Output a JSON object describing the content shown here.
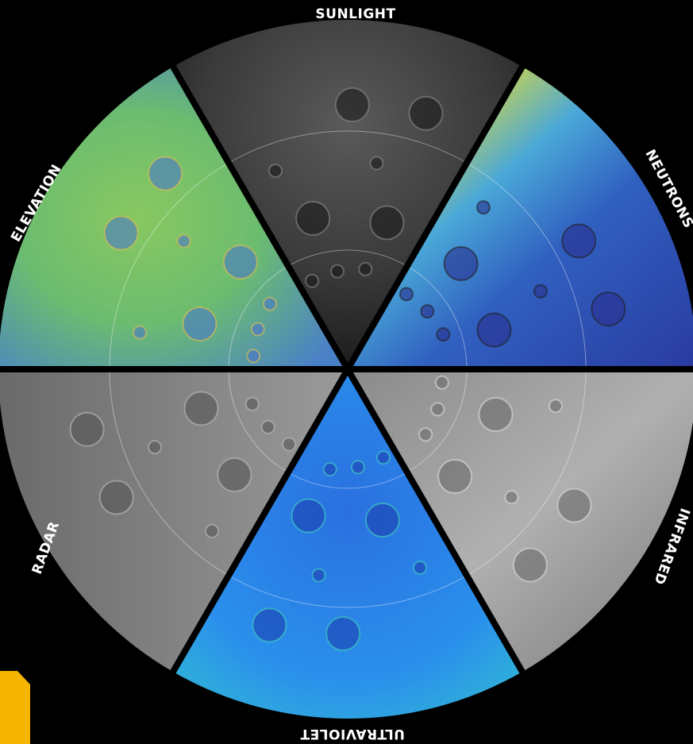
{
  "segments": [
    {
      "label": "SUNLIGHT"
    },
    {
      "label": "NEUTRONS"
    },
    {
      "label": "INFRARED"
    },
    {
      "label": "ULTRAVIOLET"
    },
    {
      "label": "RADAR"
    },
    {
      "label": "ELEVATION"
    }
  ]
}
